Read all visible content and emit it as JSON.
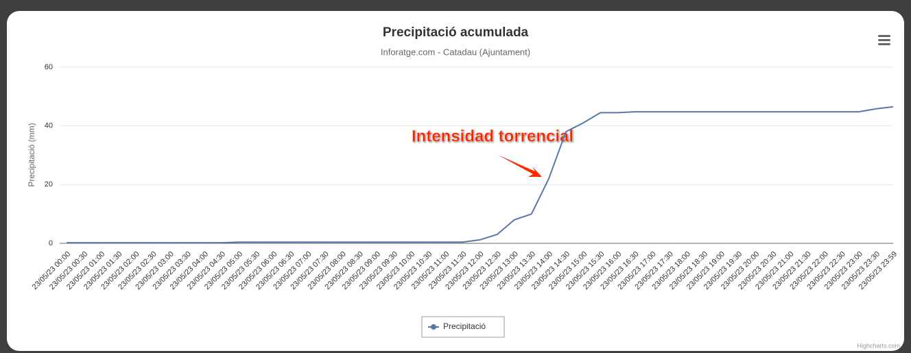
{
  "chart_data": {
    "type": "line",
    "title": "Precipitació acumulada",
    "subtitle": "Inforatge.com - Catadau (Ajuntament)",
    "y_label": "Precipitació (mm)",
    "annotation": "Intensidad torrencial",
    "credits": "Highcharts.com",
    "categories": [
      "23/05/23 00:00",
      "23/05/23 00:30",
      "23/05/23 01:00",
      "23/05/23 01:30",
      "23/05/23 02:00",
      "23/05/23 02:30",
      "23/05/23 03:00",
      "23/05/23 03:30",
      "23/05/23 04:00",
      "23/05/23 04:30",
      "23/05/23 05:00",
      "23/05/23 05:30",
      "23/05/23 06:00",
      "23/05/23 06:30",
      "23/05/23 07:00",
      "23/05/23 07:30",
      "23/05/23 08:00",
      "23/05/23 08:30",
      "23/05/23 09:00",
      "23/05/23 09:30",
      "23/05/23 10:00",
      "23/05/23 10:30",
      "23/05/23 11:00",
      "23/05/23 11:30",
      "23/05/23 12:00",
      "23/05/23 12:30",
      "23/05/23 13:00",
      "23/05/23 13:30",
      "23/05/23 14:00",
      "23/05/23 14:30",
      "23/05/23 15:00",
      "23/05/23 15:30",
      "23/05/23 16:00",
      "23/05/23 16:30",
      "23/05/23 17:00",
      "23/05/23 17:30",
      "23/05/23 18:00",
      "23/05/23 18:30",
      "23/05/23 19:00",
      "23/05/23 19:30",
      "23/05/23 20:00",
      "23/05/23 20:30",
      "23/05/23 21:00",
      "23/05/23 21:30",
      "23/05/23 22:00",
      "23/05/23 22:30",
      "23/05/23 23:00",
      "23/05/23 23:30",
      "23/05/23 23:59"
    ],
    "series": [
      {
        "name": "Precipitació",
        "color": "#5578a6",
        "values": [
          0.2,
          0.2,
          0.2,
          0.2,
          0.2,
          0.2,
          0.2,
          0.2,
          0.2,
          0.2,
          0.4,
          0.4,
          0.4,
          0.4,
          0.4,
          0.4,
          0.4,
          0.4,
          0.4,
          0.4,
          0.4,
          0.4,
          0.4,
          0.4,
          1.2,
          3,
          8,
          10,
          22,
          38,
          41,
          44.5,
          44.5,
          44.8,
          44.8,
          44.8,
          44.8,
          44.8,
          44.8,
          44.8,
          44.8,
          44.8,
          44.8,
          44.8,
          44.8,
          44.8,
          44.8,
          45.8,
          46.5
        ]
      }
    ],
    "ylim": [
      0,
      60
    ],
    "yticks": [
      0,
      20,
      40,
      60
    ],
    "grid": true,
    "legend": "bottom"
  }
}
